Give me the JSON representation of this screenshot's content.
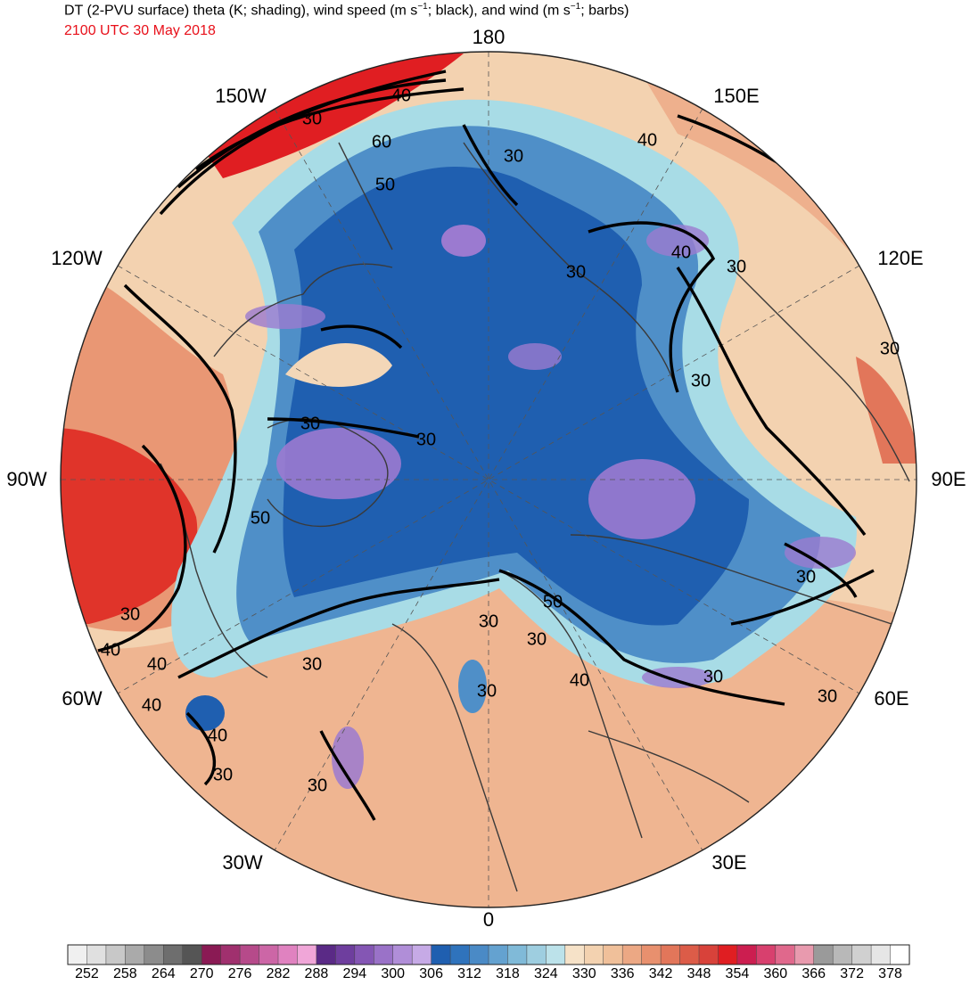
{
  "header": {
    "title_parts": [
      "DT (2-PVU surface) theta (K; shading), wind speed (m s",
      "−1",
      "; black), and wind (m s",
      "−1",
      "; barbs)"
    ],
    "valid_time": "2100 UTC 30 May 2018"
  },
  "map": {
    "projection": "north-polar-stereographic",
    "longitude_labels": {
      "top": "180",
      "bottom": "0",
      "left": "90W",
      "right": "90E",
      "upper_left_1": "150W",
      "upper_left_2": "120W",
      "upper_right_1": "150E",
      "upper_right_2": "120E",
      "lower_left_1": "60W",
      "lower_left_2": "30W",
      "lower_right_1": "60E",
      "lower_right_2": "30E"
    },
    "shading_field": "theta (K)",
    "contour_field": "wind speed (m s−1)",
    "contour_labels_visible": [
      "30",
      "40",
      "50",
      "60"
    ],
    "colors": {
      "cold_core": "#1f5fb0",
      "coldest": "#9b7ad0",
      "mid_blue": "#4f8fc8",
      "cyan": "#a8dce6",
      "tan": "#f3d7b8",
      "orange": "#e8967a",
      "red": "#e8302a",
      "contour": "#000000",
      "coastline": "#3a3a3a"
    }
  },
  "colorbar": {
    "unit": "K",
    "labels": [
      "252",
      "258",
      "264",
      "270",
      "276",
      "282",
      "288",
      "294",
      "300",
      "306",
      "312",
      "318",
      "324",
      "330",
      "336",
      "342",
      "348",
      "354",
      "360",
      "366",
      "372",
      "378"
    ],
    "colors": [
      "#f0f0f0",
      "#e0e0e0",
      "#c8c8c8",
      "#aaaaaa",
      "#8c8c8c",
      "#6e6e6e",
      "#555555",
      "#8a1a54",
      "#a0306e",
      "#b64a8a",
      "#cc66a6",
      "#e082c0",
      "#f0a6d8",
      "#5a2a86",
      "#6e3e9e",
      "#8456b4",
      "#9a72c8",
      "#b08ed8",
      "#c6aae6",
      "#1f5fb0",
      "#2f73bc",
      "#4a8ac6",
      "#64a2d0",
      "#80bad8",
      "#9ecee0",
      "#bce2ea",
      "#f6e2c8",
      "#f3d2b0",
      "#f0c09a",
      "#eca884",
      "#e8906e",
      "#e2765a",
      "#dc5c48",
      "#d8423a",
      "#e01e22",
      "#cc1e50",
      "#d8406e",
      "#e0688c",
      "#e89aae",
      "#9a9a9a",
      "#b8b8b8",
      "#d0d0d0",
      "#e6e6e6",
      "#ffffff"
    ]
  }
}
